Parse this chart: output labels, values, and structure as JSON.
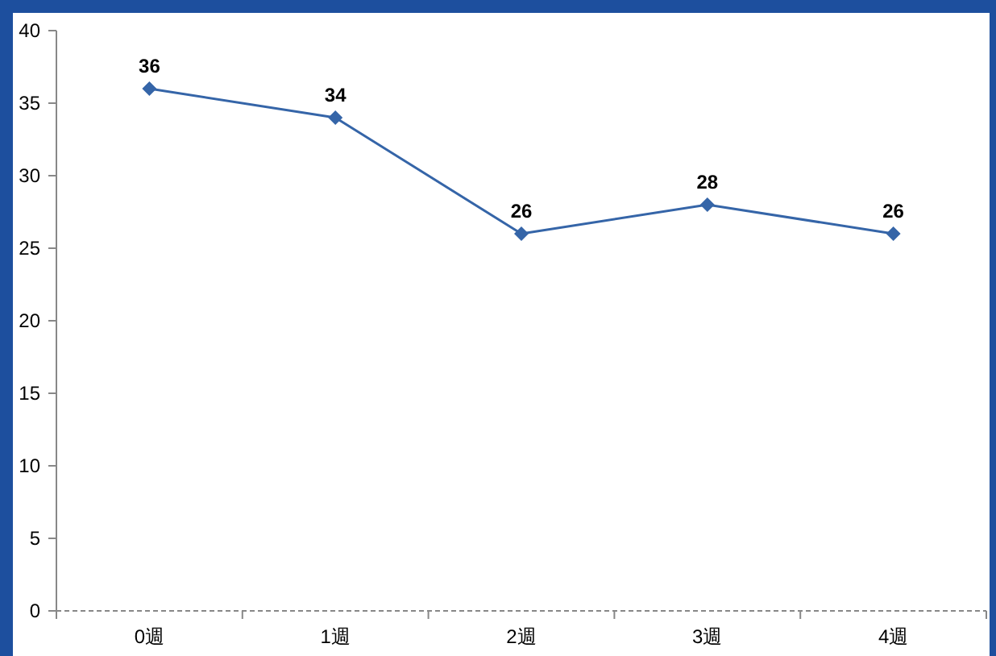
{
  "chart_data": {
    "type": "line",
    "categories": [
      "0週",
      "1週",
      "2週",
      "3週",
      "4週"
    ],
    "values": [
      36,
      34,
      26,
      28,
      26
    ],
    "color": "#3565a8",
    "ylim": [
      0,
      40
    ],
    "yticks": [
      0,
      5,
      10,
      15,
      20,
      25,
      30,
      35,
      40
    ],
    "marker": "diamond",
    "data_labels": true
  }
}
